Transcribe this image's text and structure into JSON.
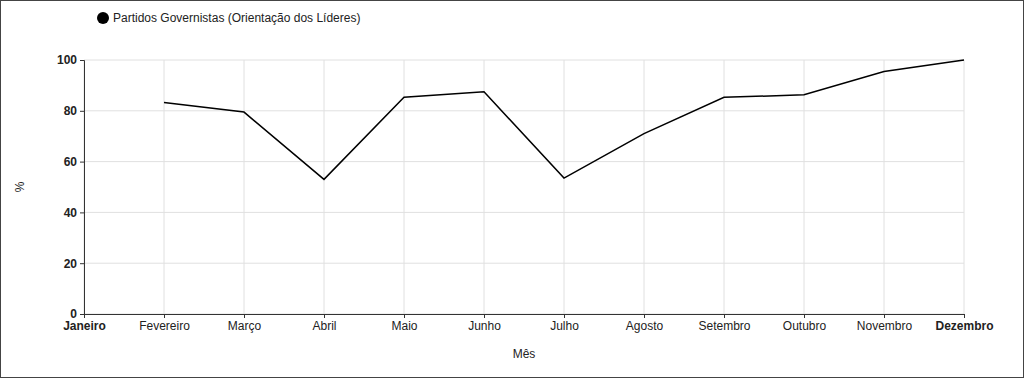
{
  "chart_data": {
    "type": "line",
    "x_label": "Mês",
    "y_label": "%",
    "categories": [
      "Janeiro",
      "Fevereiro",
      "Março",
      "Abril",
      "Maio",
      "Junho",
      "Julho",
      "Agosto",
      "Setembro",
      "Outubro",
      "Novembro",
      "Dezembro"
    ],
    "series": [
      {
        "name": "Partidos Governistas (Orientação dos Líderes)",
        "color": "#000000",
        "values": [
          null,
          83.3,
          79.5,
          53,
          85.3,
          87.5,
          53.5,
          71,
          85.3,
          86.3,
          95.5,
          100
        ]
      }
    ],
    "ylim": [
      0,
      100
    ],
    "yticks": [
      0,
      20,
      40,
      60,
      80,
      100
    ],
    "grid": true,
    "legend": "top-left"
  }
}
